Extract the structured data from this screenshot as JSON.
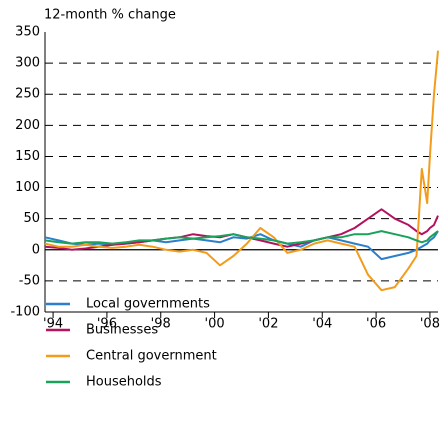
{
  "chart_data": {
    "type": "line",
    "y_axis_label": "12-month % change",
    "x": [
      1993.7,
      1994.2,
      1994.7,
      1995.2,
      1995.7,
      1996.2,
      1996.7,
      1997.2,
      1997.7,
      1998.2,
      1998.7,
      1999.2,
      1999.7,
      2000.2,
      2000.7,
      2001.2,
      2001.7,
      2002.2,
      2002.7,
      2003.2,
      2003.7,
      2004.2,
      2004.7,
      2005.2,
      2005.7,
      2006.2,
      2006.7,
      2007.2,
      2007.5,
      2007.7,
      2007.9,
      2008.0,
      2008.15,
      2008.3
    ],
    "series": [
      {
        "name": "Local governments",
        "color": "#2b7fcb",
        "values": [
          20,
          15,
          10,
          8,
          10,
          8,
          10,
          12,
          15,
          12,
          15,
          18,
          15,
          12,
          20,
          18,
          25,
          15,
          10,
          5,
          15,
          20,
          15,
          10,
          5,
          -15,
          -10,
          -5,
          0,
          5,
          10,
          15,
          20,
          30
        ]
      },
      {
        "name": "Businesses",
        "color": "#b3125f",
        "values": [
          5,
          3,
          0,
          2,
          5,
          8,
          10,
          12,
          15,
          18,
          20,
          25,
          22,
          20,
          25,
          20,
          15,
          10,
          5,
          10,
          15,
          20,
          25,
          35,
          50,
          65,
          50,
          40,
          30,
          25,
          30,
          35,
          40,
          55
        ]
      },
      {
        "name": "Central government",
        "color": "#f39c1c",
        "values": [
          10,
          5,
          5,
          8,
          5,
          3,
          5,
          8,
          5,
          0,
          -3,
          0,
          -5,
          -25,
          -10,
          10,
          35,
          20,
          -5,
          0,
          10,
          15,
          10,
          5,
          -40,
          -65,
          -60,
          -30,
          -10,
          130,
          75,
          150,
          250,
          320
        ]
      },
      {
        "name": "Households",
        "color": "#1aa15a",
        "values": [
          15,
          12,
          10,
          12,
          12,
          10,
          12,
          15,
          15,
          18,
          20,
          18,
          20,
          22,
          25,
          20,
          18,
          15,
          10,
          12,
          15,
          20,
          20,
          25,
          25,
          30,
          25,
          20,
          15,
          12,
          15,
          20,
          25,
          30
        ]
      }
    ],
    "xlim": [
      1993.7,
      2008.3
    ],
    "xticks": [
      {
        "value": 1994,
        "label": "'94"
      },
      {
        "value": 1996,
        "label": "'96"
      },
      {
        "value": 1998,
        "label": "'98"
      },
      {
        "value": 2000,
        "label": "'00"
      },
      {
        "value": 2002,
        "label": "'02"
      },
      {
        "value": 2004,
        "label": "'04"
      },
      {
        "value": 2006,
        "label": "'06"
      },
      {
        "value": 2008,
        "label": "'08"
      }
    ],
    "ylim": [
      -100,
      350
    ],
    "yticks": [
      -100,
      -50,
      0,
      50,
      100,
      150,
      200,
      250,
      300,
      350
    ],
    "grid": true
  }
}
